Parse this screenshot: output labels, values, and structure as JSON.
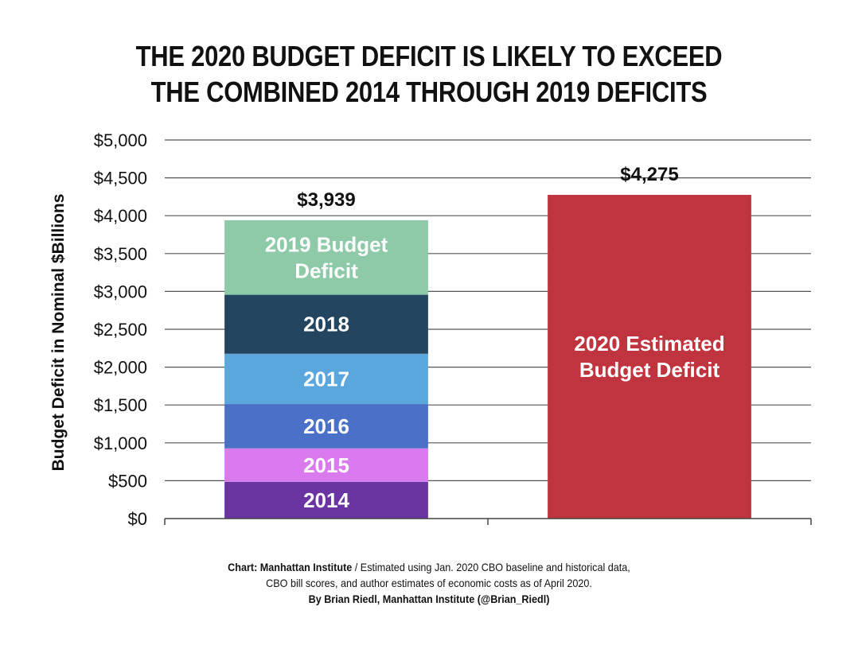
{
  "title_lines": [
    "THE 2020 BUDGET DEFICIT IS LIKELY TO EXCEED",
    "THE COMBINED 2014 THROUGH 2019 DEFICITS"
  ],
  "footer": {
    "source_label": "Chart: Manhattan Institute",
    "separator": " / ",
    "source_text_1": "Estimated using Jan. 2020 CBO baseline and historical data,",
    "source_text_2": "CBO bill scores, and author estimates of economic costs as of April 2020.",
    "byline": "By Brian Riedl, Manhattan Institute (@Brian_Riedl)"
  },
  "chart_data": {
    "type": "bar",
    "stacked": true,
    "ylabel": "Budget Deficit in Nominal $Billions",
    "xlabel": "",
    "ylim": [
      0,
      5000
    ],
    "yticks": [
      0,
      500,
      1000,
      1500,
      2000,
      2500,
      3000,
      3500,
      4000,
      4500,
      5000
    ],
    "ytick_labels": [
      "$0",
      "$500",
      "$1,000",
      "$1,500",
      "$2,000",
      "$2,500",
      "$3,000",
      "$3,500",
      "$4,000",
      "$4,500",
      "$5,000"
    ],
    "grid": true,
    "legend": "none",
    "bars": [
      {
        "total_label": "$3,939",
        "segments": [
          {
            "label": "2014",
            "value": 485,
            "color": "#6a35a2"
          },
          {
            "label": "2015",
            "value": 442,
            "color": "#d97aee"
          },
          {
            "label": "2016",
            "value": 585,
            "color": "#4a70c8"
          },
          {
            "label": "2017",
            "value": 665,
            "color": "#5ba6dd"
          },
          {
            "label": "2018",
            "value": 779,
            "color": "#24455f"
          },
          {
            "label": "2019 Budget Deficit",
            "value": 984,
            "color": "#8ec9a8"
          }
        ]
      },
      {
        "total_label": "$4,275",
        "segments": [
          {
            "label": "2020 Estimated Budget Deficit",
            "value": 4275,
            "color": "#c0343f"
          }
        ]
      }
    ]
  }
}
